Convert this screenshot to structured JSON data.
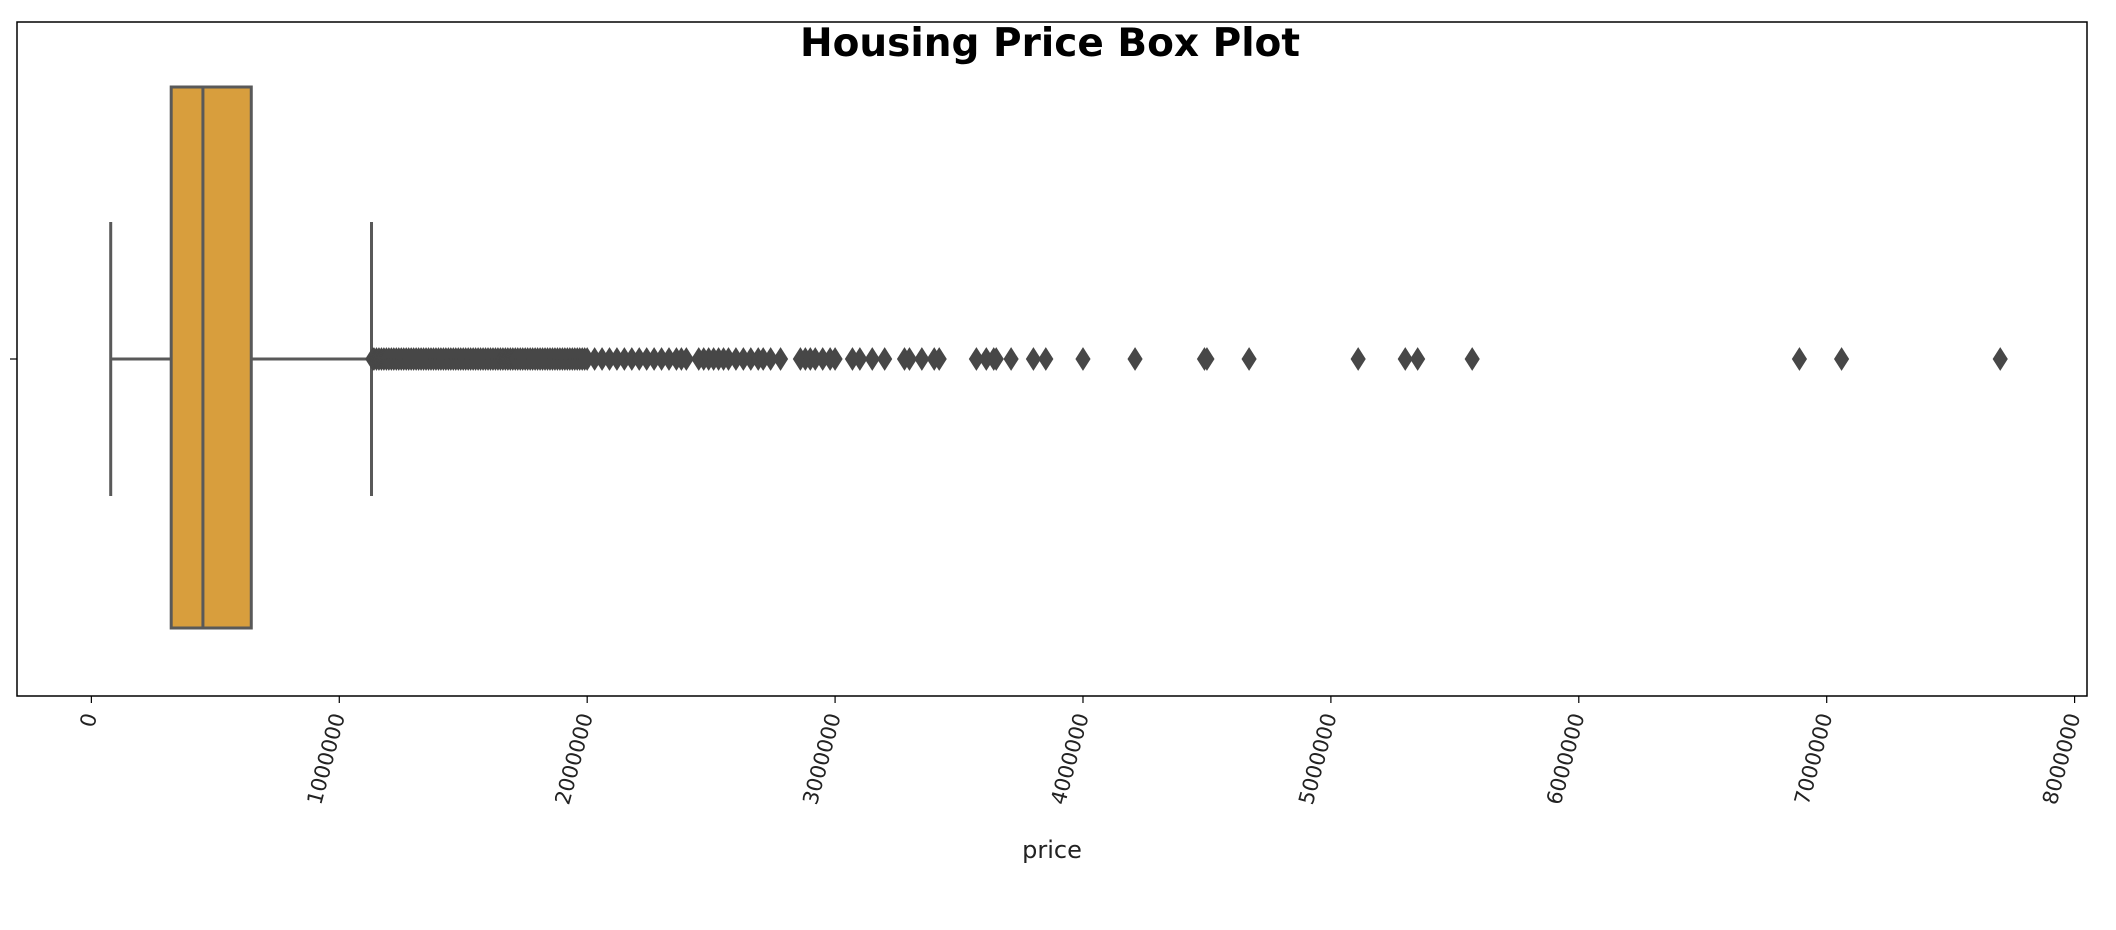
{
  "chart_data": {
    "type": "box",
    "title": "Housing Price Box Plot",
    "xlabel": "price",
    "ylabel": "",
    "orientation": "horizontal",
    "xlim": [
      -300000,
      8050000
    ],
    "xticks": [
      0,
      1000000,
      2000000,
      3000000,
      4000000,
      5000000,
      6000000,
      7000000,
      8000000
    ],
    "xtick_labels": [
      "0",
      "1000000",
      "2000000",
      "3000000",
      "4000000",
      "5000000",
      "6000000",
      "7000000",
      "8000000"
    ],
    "xtick_rotation_deg": -75,
    "grid": false,
    "box": {
      "whisker_low": 78000,
      "q1": 322000,
      "median": 450000,
      "q3": 645000,
      "whisker_high": 1130000
    },
    "outliers": [
      1135000,
      1140000,
      1150000,
      1160000,
      1170000,
      1180000,
      1190000,
      1200000,
      1210000,
      1220000,
      1230000,
      1240000,
      1250000,
      1260000,
      1270000,
      1280000,
      1290000,
      1300000,
      1310000,
      1320000,
      1330000,
      1340000,
      1350000,
      1360000,
      1370000,
      1380000,
      1390000,
      1400000,
      1410000,
      1420000,
      1430000,
      1440000,
      1450000,
      1460000,
      1470000,
      1480000,
      1490000,
      1500000,
      1510000,
      1520000,
      1530000,
      1540000,
      1550000,
      1560000,
      1570000,
      1580000,
      1590000,
      1600000,
      1610000,
      1620000,
      1630000,
      1640000,
      1650000,
      1660000,
      1670000,
      1680000,
      1690000,
      1700000,
      1710000,
      1720000,
      1730000,
      1740000,
      1750000,
      1760000,
      1770000,
      1780000,
      1790000,
      1800000,
      1810000,
      1820000,
      1830000,
      1840000,
      1850000,
      1860000,
      1870000,
      1880000,
      1890000,
      1900000,
      1910000,
      1920000,
      1930000,
      1940000,
      1950000,
      1960000,
      1970000,
      1980000,
      1990000,
      2000000,
      2030000,
      2060000,
      2090000,
      2120000,
      2150000,
      2180000,
      2210000,
      2240000,
      2270000,
      2300000,
      2330000,
      2360000,
      2380000,
      2400000,
      2450000,
      2470000,
      2490000,
      2510000,
      2530000,
      2550000,
      2570000,
      2600000,
      2630000,
      2660000,
      2690000,
      2710000,
      2740000,
      2780000,
      2860000,
      2880000,
      2900000,
      2920000,
      2950000,
      2980000,
      3000000,
      3070000,
      3100000,
      3150000,
      3200000,
      3280000,
      3300000,
      3350000,
      3400000,
      3420000,
      3570000,
      3610000,
      3640000,
      3650000,
      3710000,
      3800000,
      3850000,
      4000000,
      4210000,
      4490000,
      4500000,
      4670000,
      5110000,
      5300000,
      5350000,
      5570000,
      6890000,
      7060000,
      7700000
    ],
    "colors": {
      "box_fill": "#D89E3D",
      "lines": "#595959",
      "outlier_marker": "#474747",
      "frame": "#000000"
    }
  }
}
